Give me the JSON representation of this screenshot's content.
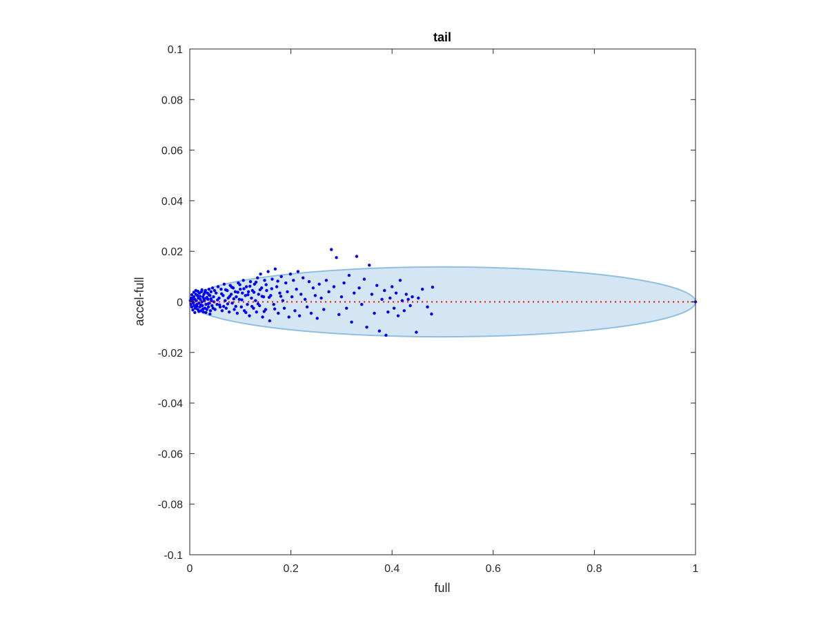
{
  "chart_data": {
    "type": "scatter",
    "title": "tail",
    "xlabel": "full",
    "ylabel": "accel-full",
    "xlim": [
      0,
      1
    ],
    "ylim": [
      -0.1,
      0.1
    ],
    "xticks": [
      0,
      0.2,
      0.4,
      0.6,
      0.8,
      1
    ],
    "xtick_labels": [
      "0",
      "0.2",
      "0.4",
      "0.6",
      "0.8",
      "1"
    ],
    "yticks": [
      -0.1,
      -0.08,
      -0.06,
      -0.04,
      -0.02,
      0,
      0.02,
      0.04,
      0.06,
      0.08,
      0.1
    ],
    "ytick_labels": [
      "-0.1",
      "-0.08",
      "-0.06",
      "-0.04",
      "-0.02",
      "0",
      "0.02",
      "0.04",
      "0.06",
      "0.08",
      "0.1"
    ],
    "grid": false,
    "colors": {
      "points": "#0000ff",
      "reference_line": "#ff0000",
      "ellipse_fill": "#d4e6f3",
      "ellipse_stroke": "#8fbfdf",
      "axes": "#262626"
    },
    "reference_line": {
      "style": "dotted",
      "y": 0,
      "x": [
        0,
        1
      ]
    },
    "ellipse": {
      "cx": 0.5,
      "cy": 0,
      "rx": 0.5,
      "ry": 0.0138
    },
    "series": [
      {
        "points": [
          [
            0.001,
            0.0005
          ],
          [
            0.002,
            -0.001
          ],
          [
            0.003,
            0.0015
          ],
          [
            0.004,
            -0.002
          ],
          [
            0.005,
            0.001
          ],
          [
            0.006,
            0.0
          ],
          [
            0.007,
            -0.0005
          ],
          [
            0.008,
            0.002
          ],
          [
            0.009,
            -0.0015
          ],
          [
            0.01,
            0.001
          ],
          [
            0.011,
            -0.0025
          ],
          [
            0.012,
            0.003
          ],
          [
            0.013,
            0.0005
          ],
          [
            0.014,
            -0.001
          ],
          [
            0.015,
            0.0025
          ],
          [
            0.016,
            -0.003
          ],
          [
            0.017,
            0.0015
          ],
          [
            0.018,
            -0.0005
          ],
          [
            0.019,
            0.0035
          ],
          [
            0.02,
            -0.002
          ],
          [
            0.021,
            0.001
          ],
          [
            0.022,
            -0.0035
          ],
          [
            0.023,
            0.004
          ],
          [
            0.024,
            0.0
          ],
          [
            0.025,
            -0.0015
          ],
          [
            0.026,
            0.002
          ],
          [
            0.027,
            -0.004
          ],
          [
            0.028,
            0.003
          ],
          [
            0.029,
            0.0005
          ],
          [
            0.03,
            -0.0025
          ],
          [
            0.031,
            0.0045
          ],
          [
            0.032,
            -0.001
          ],
          [
            0.033,
            0.0015
          ],
          [
            0.034,
            -0.003
          ],
          [
            0.035,
            0.0035
          ],
          [
            0.036,
            0.001
          ],
          [
            0.037,
            -0.002
          ],
          [
            0.038,
            0.005
          ],
          [
            0.039,
            -0.0005
          ],
          [
            0.04,
            0.0025
          ],
          [
            0.041,
            -0.0035
          ],
          [
            0.042,
            0.004
          ],
          [
            0.043,
            0.0005
          ],
          [
            0.044,
            -0.0015
          ],
          [
            0.045,
            0.0055
          ],
          [
            0.046,
            -0.0025
          ],
          [
            0.047,
            0.002
          ],
          [
            0.048,
            0.0
          ],
          [
            0.049,
            0.0045
          ],
          [
            0.05,
            -0.003
          ],
          [
            0.052,
            0.0035
          ],
          [
            0.054,
            -0.001
          ],
          [
            0.056,
            0.006
          ],
          [
            0.058,
            0.0015
          ],
          [
            0.06,
            -0.002
          ],
          [
            0.062,
            0.005
          ],
          [
            0.064,
            -0.0035
          ],
          [
            0.066,
            0.0025
          ],
          [
            0.068,
            0.007
          ],
          [
            0.07,
            0.0005
          ],
          [
            0.072,
            -0.0025
          ],
          [
            0.074,
            0.0045
          ],
          [
            0.076,
            0.0015
          ],
          [
            0.078,
            -0.004
          ],
          [
            0.08,
            0.0065
          ],
          [
            0.082,
            0.003
          ],
          [
            0.084,
            -0.0005
          ],
          [
            0.086,
            0.0055
          ],
          [
            0.088,
            -0.003
          ],
          [
            0.09,
            0.004
          ],
          [
            0.092,
            0.002
          ],
          [
            0.094,
            -0.0045
          ],
          [
            0.096,
            0.0075
          ],
          [
            0.098,
            0.001
          ],
          [
            0.1,
            0.005
          ],
          [
            0.102,
            -0.002
          ],
          [
            0.104,
            0.0035
          ],
          [
            0.106,
            0.0085
          ],
          [
            0.108,
            -0.0035
          ],
          [
            0.11,
            0.0025
          ],
          [
            0.112,
            0.006
          ],
          [
            0.114,
            -0.001
          ],
          [
            0.116,
            0.004
          ],
          [
            0.118,
            -0.0055
          ],
          [
            0.12,
            0.008
          ],
          [
            0.122,
            0.0015
          ],
          [
            0.124,
            0.0045
          ],
          [
            0.126,
            -0.0025
          ],
          [
            0.128,
            0.007
          ],
          [
            0.13,
            0.0005
          ],
          [
            0.132,
            -0.004
          ],
          [
            0.134,
            0.0095
          ],
          [
            0.136,
            0.003
          ],
          [
            0.138,
            -0.0015
          ],
          [
            0.14,
            0.011
          ],
          [
            0.142,
            0.0055
          ],
          [
            0.144,
            -0.006
          ],
          [
            0.146,
            0.002
          ],
          [
            0.148,
            0.0085
          ],
          [
            0.15,
            -0.003
          ],
          [
            0.152,
            0.0045
          ],
          [
            0.155,
            0.012
          ],
          [
            0.158,
            -0.0075
          ],
          [
            0.16,
            0.0025
          ],
          [
            0.163,
            0.009
          ],
          [
            0.166,
            -0.001
          ],
          [
            0.169,
            0.013
          ],
          [
            0.172,
            0.006
          ],
          [
            0.175,
            -0.0045
          ],
          [
            0.178,
            0.0035
          ],
          [
            0.181,
            0.01
          ],
          [
            0.184,
            0.0005
          ],
          [
            0.187,
            -0.0025
          ],
          [
            0.19,
            0.0075
          ],
          [
            0.193,
            0.004
          ],
          [
            0.196,
            -0.006
          ],
          [
            0.199,
            0.011
          ],
          [
            0.202,
            0.002
          ],
          [
            0.205,
            0.0085
          ],
          [
            0.208,
            -0.0035
          ],
          [
            0.211,
            0.005
          ],
          [
            0.214,
            0.012
          ],
          [
            0.217,
            -0.0055
          ],
          [
            0.22,
            0.003
          ],
          [
            0.224,
            0.0095
          ],
          [
            0.228,
            0.001
          ],
          [
            0.232,
            -0.002
          ],
          [
            0.236,
            0.008
          ],
          [
            0.24,
            -0.0045
          ],
          [
            0.244,
            0.0055
          ],
          [
            0.248,
            0.0025
          ],
          [
            0.252,
            -0.0065
          ],
          [
            0.256,
            0.007
          ],
          [
            0.26,
            0.0015
          ],
          [
            0.265,
            -0.003
          ],
          [
            0.27,
            0.0085
          ],
          [
            0.275,
            0.004
          ],
          [
            0.28,
            0.0207
          ],
          [
            0.285,
            0.006
          ],
          [
            0.29,
            0.0175
          ],
          [
            0.295,
            -0.005
          ],
          [
            0.3,
            0.002
          ],
          [
            0.305,
            0.0075
          ],
          [
            0.31,
            -0.0025
          ],
          [
            0.315,
            0.0105
          ],
          [
            0.32,
            -0.008
          ],
          [
            0.325,
            0.0035
          ],
          [
            0.33,
            0.018
          ],
          [
            0.335,
            0.0055
          ],
          [
            0.34,
            -0.001
          ],
          [
            0.345,
            0.009
          ],
          [
            0.35,
            -0.01
          ],
          [
            0.355,
            0.0145
          ],
          [
            0.36,
            0.003
          ],
          [
            0.365,
            -0.0045
          ],
          [
            0.37,
            0.0065
          ],
          [
            0.375,
            -0.0115
          ],
          [
            0.38,
            0.001
          ],
          [
            0.385,
            0.0045
          ],
          [
            0.388,
            -0.0132
          ],
          [
            0.392,
            -0.004
          ],
          [
            0.396,
            0.0015
          ],
          [
            0.4,
            0.006
          ],
          [
            0.404,
            -0.0025
          ],
          [
            0.408,
            0.0035
          ],
          [
            0.412,
            -0.0055
          ],
          [
            0.416,
            0.0085
          ],
          [
            0.42,
            0.0005
          ],
          [
            0.424,
            -0.0035
          ],
          [
            0.428,
            0.003
          ],
          [
            0.432,
            0.001
          ],
          [
            0.436,
            -0.0015
          ],
          [
            0.44,
            0.002
          ],
          [
            0.448,
            -0.012
          ],
          [
            0.452,
            0.0015
          ],
          [
            0.46,
            0.005
          ],
          [
            0.47,
            -0.002
          ],
          [
            0.478,
            -0.0048
          ],
          [
            0.48,
            0.0058
          ],
          [
            1.0,
            0.0
          ],
          [
            0.004,
            0.0028
          ],
          [
            0.006,
            -0.0032
          ],
          [
            0.008,
            0.0038
          ],
          [
            0.01,
            -0.0042
          ],
          [
            0.012,
            0.0045
          ],
          [
            0.014,
            -0.0018
          ],
          [
            0.016,
            0.0042
          ],
          [
            0.018,
            -0.0038
          ],
          [
            0.02,
            0.0022
          ],
          [
            0.022,
            -0.0012
          ],
          [
            0.024,
            0.0048
          ],
          [
            0.026,
            -0.0028
          ],
          [
            0.028,
            0.0012
          ],
          [
            0.03,
            0.0038
          ],
          [
            0.032,
            -0.0042
          ],
          [
            0.034,
            0.0018
          ],
          [
            0.036,
            -0.0008
          ],
          [
            0.038,
            0.0028
          ],
          [
            0.04,
            -0.0048
          ],
          [
            0.042,
            0.0012
          ],
          [
            0.055,
            0.0008
          ],
          [
            0.059,
            -0.0012
          ],
          [
            0.063,
            0.0032
          ],
          [
            0.067,
            -0.0018
          ],
          [
            0.071,
            0.0048
          ],
          [
            0.075,
            -0.0008
          ],
          [
            0.079,
            0.0022
          ],
          [
            0.083,
            0.0058
          ],
          [
            0.087,
            0.0012
          ],
          [
            0.091,
            -0.0018
          ],
          [
            0.095,
            0.0038
          ],
          [
            0.099,
            0.0068
          ],
          [
            0.103,
            0.0008
          ],
          [
            0.107,
            0.0052
          ],
          [
            0.111,
            -0.0042
          ],
          [
            0.115,
            0.0028
          ],
          [
            0.119,
            0.0062
          ],
          [
            0.123,
            -0.0018
          ],
          [
            0.127,
            0.0038
          ],
          [
            0.131,
            0.0078
          ],
          [
            0.135,
            -0.0008
          ],
          [
            0.139,
            0.0048
          ],
          [
            0.143,
            0.0022
          ],
          [
            0.147,
            -0.0038
          ],
          [
            0.151,
            0.0068
          ],
          [
            0.157,
            0.0018
          ],
          [
            0.162,
            0.0052
          ],
          [
            0.168,
            -0.0028
          ],
          [
            0.174,
            0.0082
          ],
          [
            0.18,
            0.0022
          ]
        ]
      }
    ]
  }
}
